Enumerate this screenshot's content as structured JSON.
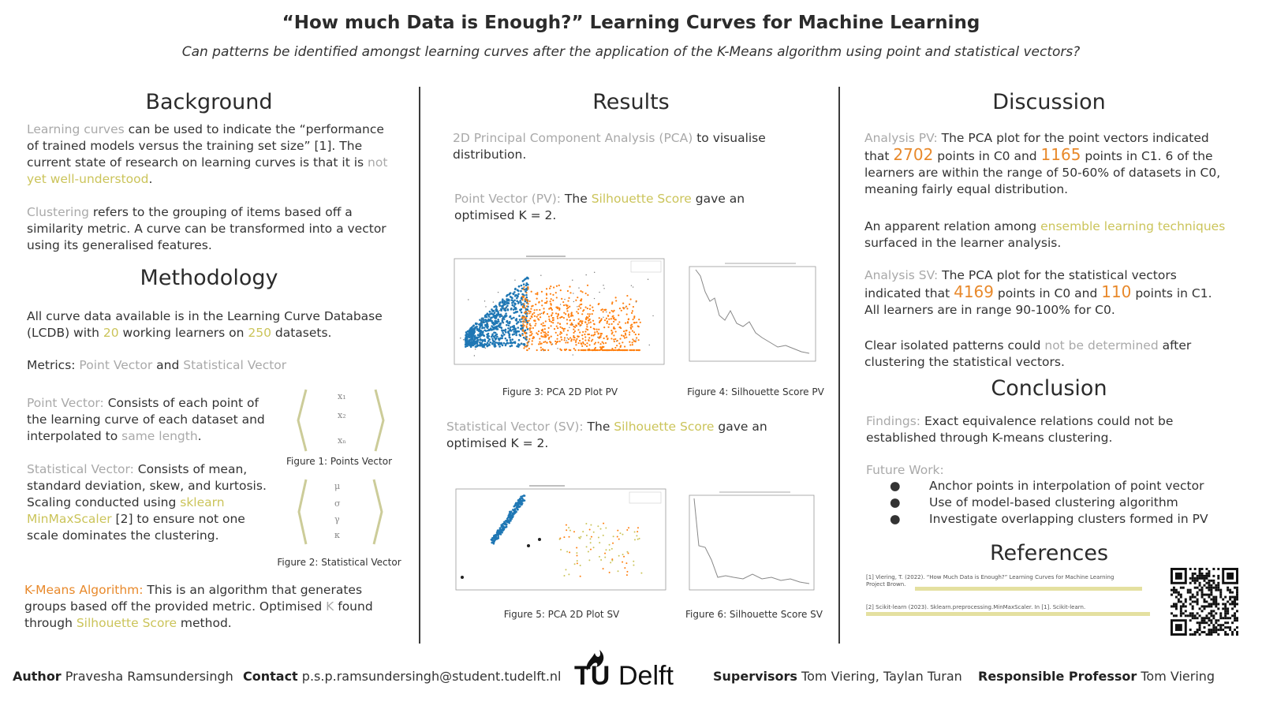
{
  "header": {
    "title": "“How much Data is Enough?” Learning Curves for Machine Learning",
    "subtitle": "Can patterns be identified amongst learning curves after the application of the K-Means algorithm using point and statistical vectors?"
  },
  "background": {
    "heading": "Background",
    "p1_a": "Learning curves",
    "p1_b": " can be used to indicate the “performance",
    "p1_c": "of trained models versus the training set size” [1]. The",
    "p1_d": "current state of research on learning curves is that it is ",
    "p1_e": "not",
    "p1_f": "yet well-understood",
    "p1_g": ".",
    "p2_a": "Clustering",
    "p2_b": " refers to the grouping of items based off a",
    "p2_c": "similarity metric. A curve can be transformed into a vector",
    "p2_d": "using its generalised features."
  },
  "methodology": {
    "heading": "Methodology",
    "p1_a": "All curve data available is in the Learning Curve Database",
    "p1_b": "(LCDB) with ",
    "p1_num1": "20",
    "p1_c": " working learners on ",
    "p1_num2": "250",
    "p1_d": " datasets.",
    "metrics_a": "Metrics: ",
    "metrics_b": "Point Vector",
    "metrics_c": " and ",
    "metrics_d": "Statistical Vector",
    "pv_a": "Point Vector:",
    "pv_b": " Consists of each point of",
    "pv_c": "the learning curve of each dataset and",
    "pv_d": "interpolated to ",
    "pv_e": "same length",
    "pv_f": ".",
    "fig1": "Figure 1: Points Vector",
    "sv_a": "Statistical Vector:",
    "sv_b": " Consists of mean,",
    "sv_c": "standard deviation, skew, and kurtosis.",
    "sv_d": "Scaling conducted using ",
    "sv_e": "sklearn",
    "sv_f": "MinMaxScaler",
    "sv_g": " [2] to ensure not one",
    "sv_h": "scale dominates the clustering.",
    "fig2": "Figure 2: Statistical Vector",
    "km_a": "K-Means Algorithm:",
    "km_b": " This is an algorithm that generates",
    "km_c": "groups based off the provided metric. Optimised ",
    "km_d": "K",
    "km_e": " found",
    "km_f": "through ",
    "km_g": "Silhouette Score",
    "km_h": " method.",
    "vec1": [
      "x₁",
      "x₂",
      "xₙ"
    ],
    "vec2": [
      "μ",
      "σ",
      "γ",
      "κ"
    ]
  },
  "results": {
    "heading": "Results",
    "p1_a": "2D Principal Component Analysis (PCA)",
    "p1_b": " to visualise",
    "p1_c": "distribution.",
    "p2_a": "Point Vector (PV):",
    "p2_b": " The ",
    "p2_c": "Silhouette Score",
    "p2_d": " gave an",
    "p2_e": "optimised K = 2.",
    "fig3": "Figure 3: PCA 2D Plot PV",
    "fig4": "Figure 4: Silhouette Score PV",
    "p3_a": "Statistical Vector (SV):",
    "p3_b": " The ",
    "p3_c": "Silhouette Score",
    "p3_d": " gave an",
    "p3_e": "optimised K = 2.",
    "fig5": "Figure 5: PCA 2D Plot SV",
    "fig6": "Figure 6: Silhouette Score SV"
  },
  "discussion": {
    "heading": "Discussion",
    "p1_a": "Analysis PV:",
    "p1_b": " The PCA plot for the point vectors indicated",
    "p1_c": "that ",
    "p1_n1": "2702",
    "p1_d": " points in C0 and ",
    "p1_n2": "1165",
    "p1_e": " points in C1. 6 of the",
    "p1_f": "learners are within the range of 50-60% of datasets in C0,",
    "p1_g": "meaning fairly equal distribution.",
    "p2_a": "An apparent relation among ",
    "p2_b": "ensemble learning techniques",
    "p2_c": "surfaced in the learner analysis.",
    "p3_a": "Analysis SV:",
    "p3_b": " The PCA plot for the statistical vectors",
    "p3_c": "indicated that ",
    "p3_n1": "4169",
    "p3_d": " points in C0 and ",
    "p3_n2": "110",
    "p3_e": " points in C1.",
    "p3_f": "All learners are in range 90-100% for C0.",
    "p4_a": "Clear isolated patterns could ",
    "p4_b": "not be determined",
    "p4_c": " after",
    "p4_d": "clustering the statistical vectors."
  },
  "conclusion": {
    "heading": "Conclusion",
    "f_a": "Findings:",
    "f_b": " Exact equivalence relations could not be",
    "f_c": "established through K-means clustering.",
    "fw": "Future Work:",
    "bullets": [
      "Anchor points in interpolation of point vector",
      "Use of model-based clustering algorithm",
      "Investigate overlapping clusters formed in PV"
    ]
  },
  "references": {
    "heading": "References",
    "r1": "[1] Viering, T. (2022). “How Much Data is Enough?” Learning Curves for Machine Learning",
    "r1b": "Project Brown.",
    "r2": "[2] Scikit-learn (2023). Sklearn.preprocessing.MinMaxScaler. In [1]. Scikit-learn."
  },
  "footer": {
    "author_label": "Author",
    "author": "Pravesha Ramsundersingh",
    "contact_label": "Contact",
    "contact": "p.s.p.ramsundersingh@student.tudelft.nl",
    "logo_tu": "TU",
    "logo_delft": "Delft",
    "supervisors_label": "Supervisors",
    "supervisors": "Tom Viering, Taylan Turan",
    "professor_label": "Responsible Professor",
    "professor": "Tom Viering"
  },
  "colors": {
    "cluster0": "#1f77b4",
    "cluster1": "#ff7f0e",
    "highlight_orange": "#e8892b",
    "highlight_yellow": "#cbc45a"
  }
}
